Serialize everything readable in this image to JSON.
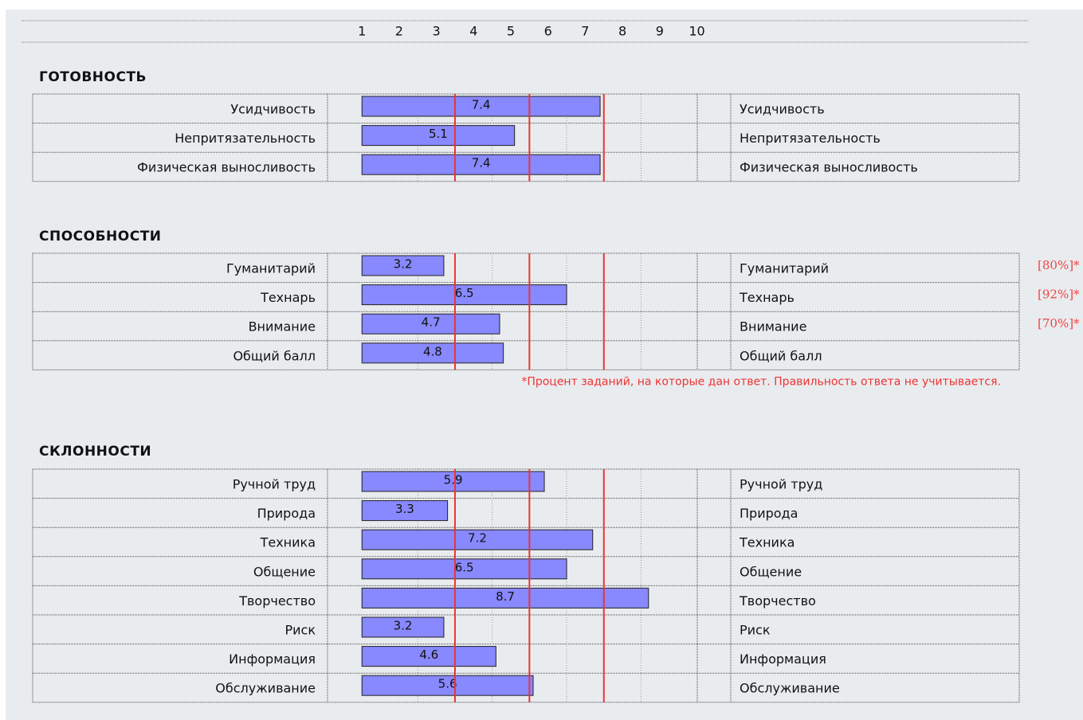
{
  "chart_data": [
    {
      "type": "bar",
      "title": "ГОТОВНОСТЬ",
      "categories": [
        "Усидчивость",
        "Непритязательность",
        "Физическая выносливость"
      ],
      "values": [
        7.4,
        5.1,
        7.4
      ]
    },
    {
      "type": "bar",
      "title": "СПОСОБНОСТИ",
      "categories": [
        "Гуманитарий",
        "Технарь",
        "Внимание",
        "Общий балл"
      ],
      "values": [
        3.2,
        6.5,
        4.7,
        4.8
      ],
      "annotations": [
        "[80%]*",
        "[92%]*",
        "[70%]*",
        null
      ],
      "note": "*Процент заданий, на которые дан ответ. Правильность ответа не учитывается."
    },
    {
      "type": "bar",
      "title": "СКЛОННОСТИ",
      "categories": [
        "Ручной труд",
        "Природа",
        "Техника",
        "Общение",
        "Творчество",
        "Риск",
        "Информация",
        "Обслуживание"
      ],
      "values": [
        5.9,
        3.3,
        7.2,
        6.5,
        8.7,
        3.2,
        4.6,
        5.6
      ]
    }
  ],
  "axis": {
    "xlim": [
      0,
      10
    ],
    "xticks": [
      1,
      2,
      3,
      4,
      5,
      6,
      7,
      8,
      9,
      10
    ],
    "reference_lines": [
      3.5,
      5.5,
      7.5
    ],
    "reference_color": "#e33",
    "bar_color": "#8888ff"
  }
}
